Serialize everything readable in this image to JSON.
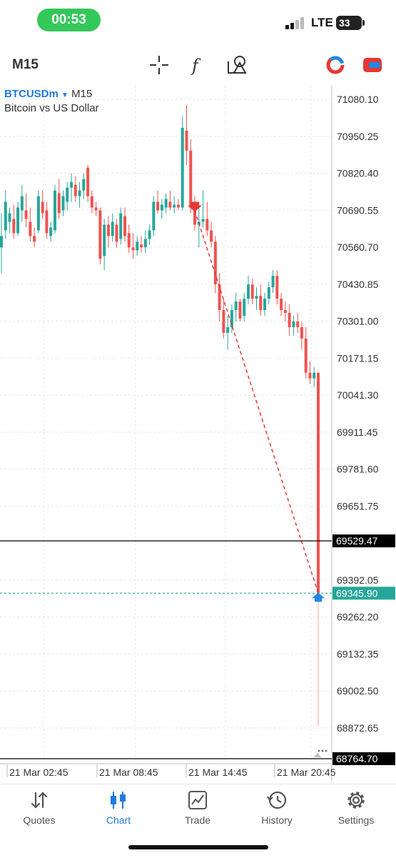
{
  "status": {
    "time": "00:53",
    "network": "LTE",
    "battery": "33"
  },
  "toolbar": {
    "timeframe": "M15",
    "icons": [
      "crosshair-icon",
      "indicators-icon",
      "objects-icon",
      "color-scheme-icon",
      "trade-panel-icon"
    ]
  },
  "symbol": {
    "name": "BTCUSDm",
    "timeframe": "M15",
    "description": "Bitcoin vs US Dollar"
  },
  "chart_data": {
    "type": "candlestick",
    "symbol": "BTCUSDm",
    "timeframe": "M15",
    "ylim": [
      68764.7,
      71080.1
    ],
    "y_ticks": [
      "71080.10",
      "70950.25",
      "70820.40",
      "70690.55",
      "70560.70",
      "70430.85",
      "70301.00",
      "70171.15",
      "70041.30",
      "69911.45",
      "69781.60",
      "69651.75",
      "69392.05",
      "69262.20",
      "69132.35",
      "69002.50",
      "68872.65"
    ],
    "price_labels": [
      {
        "value": "69529.47",
        "kind": "level"
      },
      {
        "value": "69345.90",
        "kind": "bid"
      },
      {
        "value": "68764.70",
        "kind": "level"
      }
    ],
    "x_labels": [
      "21 Mar 02:45",
      "21 Mar 08:45",
      "21 Mar 14:45",
      "21 Mar 20:45"
    ],
    "candles": [
      {
        "o": 70560,
        "h": 70680,
        "l": 70470,
        "c": 70600
      },
      {
        "o": 70620,
        "h": 70760,
        "l": 70590,
        "c": 70720
      },
      {
        "o": 70650,
        "h": 70700,
        "l": 70610,
        "c": 70680
      },
      {
        "o": 70660,
        "h": 70710,
        "l": 70590,
        "c": 70610
      },
      {
        "o": 70610,
        "h": 70720,
        "l": 70600,
        "c": 70700
      },
      {
        "o": 70690,
        "h": 70780,
        "l": 70650,
        "c": 70740
      },
      {
        "o": 70690,
        "h": 70750,
        "l": 70630,
        "c": 70660
      },
      {
        "o": 70650,
        "h": 70700,
        "l": 70580,
        "c": 70600
      },
      {
        "o": 70600,
        "h": 70630,
        "l": 70560,
        "c": 70580
      },
      {
        "o": 70620,
        "h": 70760,
        "l": 70610,
        "c": 70740
      },
      {
        "o": 70720,
        "h": 70760,
        "l": 70660,
        "c": 70680
      },
      {
        "o": 70690,
        "h": 70720,
        "l": 70590,
        "c": 70610
      },
      {
        "o": 70600,
        "h": 70650,
        "l": 70580,
        "c": 70630
      },
      {
        "o": 70620,
        "h": 70780,
        "l": 70610,
        "c": 70760
      },
      {
        "o": 70750,
        "h": 70800,
        "l": 70660,
        "c": 70680
      },
      {
        "o": 70690,
        "h": 70760,
        "l": 70670,
        "c": 70740
      },
      {
        "o": 70720,
        "h": 70790,
        "l": 70690,
        "c": 70770
      },
      {
        "o": 70770,
        "h": 70820,
        "l": 70720,
        "c": 70790
      },
      {
        "o": 70780,
        "h": 70810,
        "l": 70720,
        "c": 70740
      },
      {
        "o": 70740,
        "h": 70790,
        "l": 70700,
        "c": 70760
      },
      {
        "o": 70760,
        "h": 70820,
        "l": 70730,
        "c": 70800
      },
      {
        "o": 70840,
        "h": 70850,
        "l": 70720,
        "c": 70740
      },
      {
        "o": 70740,
        "h": 70760,
        "l": 70680,
        "c": 70700
      },
      {
        "o": 70700,
        "h": 70720,
        "l": 70670,
        "c": 70690
      },
      {
        "o": 70690,
        "h": 70700,
        "l": 70500,
        "c": 70520
      },
      {
        "o": 70530,
        "h": 70660,
        "l": 70480,
        "c": 70640
      },
      {
        "o": 70640,
        "h": 70670,
        "l": 70560,
        "c": 70600
      },
      {
        "o": 70600,
        "h": 70680,
        "l": 70580,
        "c": 70650
      },
      {
        "o": 70640,
        "h": 70660,
        "l": 70560,
        "c": 70580
      },
      {
        "o": 70590,
        "h": 70700,
        "l": 70570,
        "c": 70680
      },
      {
        "o": 70670,
        "h": 70700,
        "l": 70580,
        "c": 70600
      },
      {
        "o": 70610,
        "h": 70640,
        "l": 70540,
        "c": 70560
      },
      {
        "o": 70560,
        "h": 70610,
        "l": 70520,
        "c": 70550
      },
      {
        "o": 70550,
        "h": 70600,
        "l": 70530,
        "c": 70580
      },
      {
        "o": 70570,
        "h": 70600,
        "l": 70540,
        "c": 70560
      },
      {
        "o": 70560,
        "h": 70620,
        "l": 70540,
        "c": 70590
      },
      {
        "o": 70590,
        "h": 70640,
        "l": 70570,
        "c": 70620
      },
      {
        "o": 70620,
        "h": 70740,
        "l": 70600,
        "c": 70720
      },
      {
        "o": 70720,
        "h": 70760,
        "l": 70680,
        "c": 70690
      },
      {
        "o": 70690,
        "h": 70730,
        "l": 70660,
        "c": 70710
      },
      {
        "o": 70700,
        "h": 70750,
        "l": 70680,
        "c": 70730
      },
      {
        "o": 70720,
        "h": 70760,
        "l": 70690,
        "c": 70700
      },
      {
        "o": 70700,
        "h": 70740,
        "l": 70680,
        "c": 70710
      },
      {
        "o": 70710,
        "h": 70730,
        "l": 70690,
        "c": 70700
      },
      {
        "o": 70700,
        "h": 71020,
        "l": 70690,
        "c": 70980
      },
      {
        "o": 70970,
        "h": 71060,
        "l": 70850,
        "c": 70900
      },
      {
        "o": 70900,
        "h": 70940,
        "l": 70680,
        "c": 70700
      },
      {
        "o": 70700,
        "h": 70740,
        "l": 70620,
        "c": 70640
      },
      {
        "o": 70640,
        "h": 70700,
        "l": 70560,
        "c": 70650
      },
      {
        "o": 70650,
        "h": 70760,
        "l": 70630,
        "c": 70660
      },
      {
        "o": 70660,
        "h": 70720,
        "l": 70600,
        "c": 70620
      },
      {
        "o": 70620,
        "h": 70650,
        "l": 70560,
        "c": 70580
      },
      {
        "o": 70580,
        "h": 70600,
        "l": 70400,
        "c": 70430
      },
      {
        "o": 70430,
        "h": 70470,
        "l": 70300,
        "c": 70340
      },
      {
        "o": 70340,
        "h": 70380,
        "l": 70240,
        "c": 70260
      },
      {
        "o": 70260,
        "h": 70320,
        "l": 70200,
        "c": 70280
      },
      {
        "o": 70280,
        "h": 70360,
        "l": 70260,
        "c": 70340
      },
      {
        "o": 70340,
        "h": 70400,
        "l": 70300,
        "c": 70370
      },
      {
        "o": 70370,
        "h": 70380,
        "l": 70300,
        "c": 70310
      },
      {
        "o": 70320,
        "h": 70400,
        "l": 70300,
        "c": 70380
      },
      {
        "o": 70380,
        "h": 70460,
        "l": 70360,
        "c": 70430
      },
      {
        "o": 70430,
        "h": 70450,
        "l": 70360,
        "c": 70380
      },
      {
        "o": 70380,
        "h": 70420,
        "l": 70340,
        "c": 70390
      },
      {
        "o": 70390,
        "h": 70430,
        "l": 70320,
        "c": 70340
      },
      {
        "o": 70340,
        "h": 70400,
        "l": 70320,
        "c": 70380
      },
      {
        "o": 70380,
        "h": 70440,
        "l": 70360,
        "c": 70420
      },
      {
        "o": 70420,
        "h": 70480,
        "l": 70400,
        "c": 70460
      },
      {
        "o": 70460,
        "h": 70480,
        "l": 70360,
        "c": 70380
      },
      {
        "o": 70380,
        "h": 70400,
        "l": 70320,
        "c": 70340
      },
      {
        "o": 70340,
        "h": 70370,
        "l": 70300,
        "c": 70330
      },
      {
        "o": 70330,
        "h": 70360,
        "l": 70250,
        "c": 70280
      },
      {
        "o": 70280,
        "h": 70320,
        "l": 70250,
        "c": 70300
      },
      {
        "o": 70300,
        "h": 70330,
        "l": 70260,
        "c": 70280
      },
      {
        "o": 70280,
        "h": 70300,
        "l": 70200,
        "c": 70240
      },
      {
        "o": 70240,
        "h": 70280,
        "l": 70100,
        "c": 70120
      },
      {
        "o": 70120,
        "h": 70160,
        "l": 70080,
        "c": 70100
      },
      {
        "o": 70100,
        "h": 70140,
        "l": 70070,
        "c": 70120
      },
      {
        "o": 70120,
        "h": 70130,
        "l": 68880,
        "c": 69345.9
      }
    ],
    "colors": {
      "up": "#26a69a",
      "down": "#ef5350",
      "grid": "#e6e6e6",
      "bid": "#26a69a",
      "level": "#000000"
    }
  },
  "tabs": [
    {
      "label": "Quotes",
      "icon": "quotes-icon",
      "active": false
    },
    {
      "label": "Chart",
      "icon": "chart-icon",
      "active": true
    },
    {
      "label": "Trade",
      "icon": "trade-icon",
      "active": false
    },
    {
      "label": "History",
      "icon": "history-icon",
      "active": false
    },
    {
      "label": "Settings",
      "icon": "settings-icon",
      "active": false
    }
  ]
}
